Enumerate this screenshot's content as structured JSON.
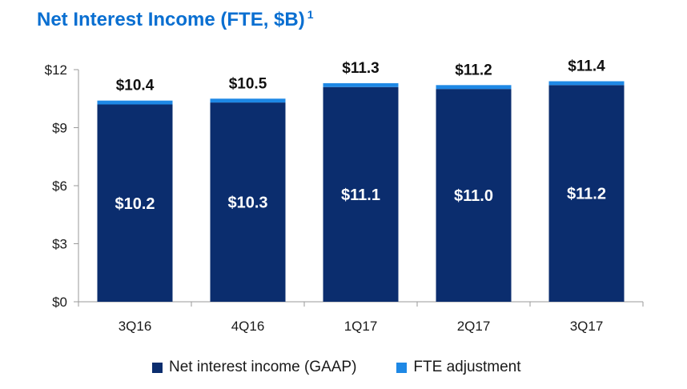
{
  "title": "Net Interest Income (FTE, $B)",
  "footnote": "1",
  "colors": {
    "gaap": "#0b2d6e",
    "fte": "#1e88e5",
    "title": "#0a6fd1",
    "axis": "#9a9a9a"
  },
  "chart_data": {
    "type": "bar",
    "stacked": true,
    "categories": [
      "3Q16",
      "4Q16",
      "1Q17",
      "2Q17",
      "3Q17"
    ],
    "series": [
      {
        "name": "Net interest income (GAAP)",
        "values": [
          10.2,
          10.3,
          11.1,
          11.0,
          11.2
        ],
        "labels": [
          "$10.2",
          "$10.3",
          "$11.1",
          "$11.0",
          "$11.2"
        ]
      },
      {
        "name": "FTE adjustment",
        "values": [
          0.2,
          0.2,
          0.2,
          0.2,
          0.2
        ]
      }
    ],
    "totals": [
      10.4,
      10.5,
      11.3,
      11.2,
      11.4
    ],
    "total_labels": [
      "$10.4",
      "$10.5",
      "$11.3",
      "$11.2",
      "$11.4"
    ],
    "ylim": [
      0,
      12
    ],
    "yticks": [
      0,
      3,
      6,
      9,
      12
    ],
    "ytick_labels": [
      "$0",
      "$3",
      "$6",
      "$9",
      "$12"
    ],
    "legend_position": "bottom"
  }
}
